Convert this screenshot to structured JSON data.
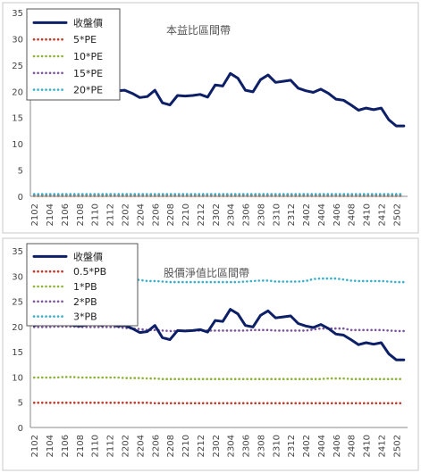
{
  "chart_data": [
    {
      "type": "line",
      "annotation": "本益比區間帶",
      "x": [
        "2102",
        "2103",
        "2104",
        "2105",
        "2106",
        "2107",
        "2108",
        "2109",
        "2110",
        "2111",
        "2112",
        "2201",
        "2202",
        "2203",
        "2204",
        "2205",
        "2206",
        "2207",
        "2208",
        "2209",
        "2210",
        "2211",
        "2212",
        "2301",
        "2302",
        "2303",
        "2304",
        "2305",
        "2306",
        "2307",
        "2308",
        "2309",
        "2310",
        "2311",
        "2312",
        "2401",
        "2402",
        "2403",
        "2404",
        "2405",
        "2406",
        "2407",
        "2408",
        "2409",
        "2410",
        "2411",
        "2412",
        "2501",
        "2502",
        "2503"
      ],
      "x_tick_labels": [
        "2102",
        "2104",
        "2106",
        "2108",
        "2110",
        "2112",
        "2202",
        "2204",
        "2206",
        "2208",
        "2210",
        "2212",
        "2302",
        "2304",
        "2306",
        "2308",
        "2310",
        "2312",
        "2402",
        "2404",
        "2406",
        "2408",
        "2410",
        "2412",
        "2502"
      ],
      "ylim": [
        0,
        35
      ],
      "y_ticks": [
        0,
        5,
        10,
        15,
        20,
        25,
        30,
        35
      ],
      "grid": false,
      "legend_placement": "top-left",
      "series": [
        {
          "name": "收盤價",
          "style": "solid",
          "color": "#0d1f66",
          "values": [
            20.2,
            20.5,
            20.8,
            21.0,
            20.6,
            20.3,
            20.1,
            20.3,
            20.5,
            20.2,
            20.6,
            20.1,
            20.2,
            19.6,
            18.8,
            19.0,
            20.2,
            17.8,
            17.4,
            19.2,
            19.1,
            19.2,
            19.4,
            18.9,
            21.2,
            21.0,
            23.4,
            22.5,
            20.2,
            19.9,
            22.2,
            23.1,
            21.7,
            21.9,
            22.1,
            20.6,
            20.1,
            19.8,
            20.4,
            19.6,
            18.5,
            18.3,
            17.4,
            16.4,
            16.8,
            16.5,
            16.8,
            14.6,
            13.4,
            13.4
          ]
        },
        {
          "name": "5*PE",
          "style": "dotted",
          "color": "#c0392b",
          "values": [
            0.1,
            0.1,
            0.1,
            0.1,
            0.1,
            0.1,
            0.1,
            0.1,
            0.1,
            0.1,
            0.1,
            0.1,
            0.1,
            0.1,
            0.1,
            0.1,
            0.1,
            0.1,
            0.1,
            0.1,
            0.1,
            0.1,
            0.1,
            0.1,
            0.1,
            0.1,
            0.1,
            0.1,
            0.1,
            0.1,
            0.1,
            0.1,
            0.1,
            0.1,
            0.1,
            0.1,
            0.1,
            0.1,
            0.1,
            0.1,
            0.1,
            0.1,
            0.1,
            0.1,
            0.1,
            0.1,
            0.1,
            0.1,
            0.1,
            0.1
          ]
        },
        {
          "name": "10*PE",
          "style": "dotted",
          "color": "#8db33a",
          "values": [
            0.2,
            0.2,
            0.2,
            0.2,
            0.2,
            0.2,
            0.2,
            0.2,
            0.2,
            0.2,
            0.2,
            0.2,
            0.2,
            0.2,
            0.2,
            0.2,
            0.2,
            0.2,
            0.2,
            0.2,
            0.2,
            0.2,
            0.2,
            0.2,
            0.2,
            0.2,
            0.2,
            0.2,
            0.2,
            0.2,
            0.2,
            0.2,
            0.2,
            0.2,
            0.2,
            0.2,
            0.2,
            0.2,
            0.2,
            0.2,
            0.2,
            0.2,
            0.2,
            0.2,
            0.2,
            0.2,
            0.2,
            0.2,
            0.2,
            0.2
          ]
        },
        {
          "name": "15*PE",
          "style": "dotted",
          "color": "#7b559e",
          "values": [
            0.3,
            0.3,
            0.3,
            0.3,
            0.3,
            0.3,
            0.3,
            0.3,
            0.3,
            0.3,
            0.3,
            0.3,
            0.3,
            0.3,
            0.3,
            0.3,
            0.3,
            0.3,
            0.3,
            0.3,
            0.3,
            0.3,
            0.3,
            0.3,
            0.3,
            0.3,
            0.3,
            0.3,
            0.3,
            0.3,
            0.3,
            0.3,
            0.3,
            0.3,
            0.3,
            0.3,
            0.3,
            0.3,
            0.3,
            0.3,
            0.3,
            0.3,
            0.3,
            0.3,
            0.3,
            0.3,
            0.3,
            0.3,
            0.3,
            0.3
          ]
        },
        {
          "name": "20*PE",
          "style": "dotted",
          "color": "#3cb0c9",
          "values": [
            0.4,
            0.4,
            0.4,
            0.4,
            0.4,
            0.4,
            0.4,
            0.4,
            0.4,
            0.4,
            0.4,
            0.4,
            0.4,
            0.4,
            0.4,
            0.4,
            0.4,
            0.4,
            0.4,
            0.4,
            0.4,
            0.4,
            0.4,
            0.4,
            0.4,
            0.4,
            0.4,
            0.4,
            0.4,
            0.4,
            0.4,
            0.4,
            0.4,
            0.4,
            0.4,
            0.4,
            0.4,
            0.4,
            0.4,
            0.4,
            0.4,
            0.4,
            0.4,
            0.4,
            0.4,
            0.4,
            0.4,
            0.4,
            0.4,
            0.4
          ]
        }
      ]
    },
    {
      "type": "line",
      "annotation": "股價淨值比區間帶",
      "x": [
        "2102",
        "2103",
        "2104",
        "2105",
        "2106",
        "2107",
        "2108",
        "2109",
        "2110",
        "2111",
        "2112",
        "2201",
        "2202",
        "2203",
        "2204",
        "2205",
        "2206",
        "2207",
        "2208",
        "2209",
        "2210",
        "2211",
        "2212",
        "2301",
        "2302",
        "2303",
        "2304",
        "2305",
        "2306",
        "2307",
        "2308",
        "2309",
        "2310",
        "2311",
        "2312",
        "2401",
        "2402",
        "2403",
        "2404",
        "2405",
        "2406",
        "2407",
        "2408",
        "2409",
        "2410",
        "2411",
        "2412",
        "2501",
        "2502",
        "2503"
      ],
      "x_tick_labels": [
        "2102",
        "2104",
        "2106",
        "2108",
        "2110",
        "2112",
        "2202",
        "2204",
        "2206",
        "2208",
        "2210",
        "2212",
        "2302",
        "2304",
        "2306",
        "2308",
        "2310",
        "2312",
        "2402",
        "2404",
        "2406",
        "2408",
        "2410",
        "2412",
        "2502"
      ],
      "ylim": [
        0,
        35
      ],
      "y_ticks": [
        0,
        5,
        10,
        15,
        20,
        25,
        30,
        35
      ],
      "grid": false,
      "legend_placement": "top-left",
      "series": [
        {
          "name": "收盤價",
          "style": "solid",
          "color": "#0d1f66",
          "values": [
            20.2,
            20.5,
            20.8,
            21.0,
            20.6,
            20.3,
            20.1,
            20.3,
            20.5,
            20.2,
            20.6,
            20.1,
            20.2,
            19.6,
            18.8,
            19.0,
            20.2,
            17.8,
            17.4,
            19.2,
            19.1,
            19.2,
            19.4,
            18.9,
            21.2,
            21.0,
            23.4,
            22.5,
            20.2,
            19.9,
            22.2,
            23.1,
            21.7,
            21.9,
            22.1,
            20.6,
            20.1,
            19.8,
            20.4,
            19.6,
            18.5,
            18.3,
            17.4,
            16.4,
            16.8,
            16.5,
            16.8,
            14.6,
            13.4,
            13.4
          ]
        },
        {
          "name": "0.5*PB",
          "style": "dotted",
          "color": "#c0392b",
          "values": [
            4.9,
            4.9,
            4.9,
            4.9,
            4.9,
            4.9,
            4.9,
            4.9,
            4.9,
            4.9,
            4.9,
            4.9,
            4.9,
            4.9,
            4.9,
            4.9,
            4.8,
            4.8,
            4.8,
            4.8,
            4.8,
            4.8,
            4.8,
            4.8,
            4.8,
            4.8,
            4.8,
            4.8,
            4.8,
            4.8,
            4.8,
            4.8,
            4.8,
            4.8,
            4.8,
            4.8,
            4.8,
            4.8,
            4.8,
            4.8,
            4.8,
            4.8,
            4.8,
            4.8,
            4.8,
            4.8,
            4.8,
            4.8,
            4.8,
            4.8
          ]
        },
        {
          "name": "1*PB",
          "style": "dotted",
          "color": "#8db33a",
          "values": [
            9.9,
            9.9,
            9.9,
            9.9,
            10.0,
            10.0,
            9.9,
            9.9,
            9.9,
            9.9,
            9.9,
            9.9,
            9.8,
            9.8,
            9.8,
            9.7,
            9.7,
            9.6,
            9.6,
            9.6,
            9.6,
            9.6,
            9.6,
            9.6,
            9.6,
            9.6,
            9.6,
            9.6,
            9.6,
            9.6,
            9.6,
            9.6,
            9.6,
            9.6,
            9.6,
            9.6,
            9.6,
            9.6,
            9.6,
            9.7,
            9.7,
            9.7,
            9.6,
            9.6,
            9.6,
            9.6,
            9.6,
            9.6,
            9.6,
            9.6
          ]
        },
        {
          "name": "2*PB",
          "style": "dotted",
          "color": "#7b559e",
          "values": [
            19.9,
            19.9,
            19.9,
            20.0,
            20.0,
            20.0,
            19.9,
            19.9,
            19.9,
            19.9,
            19.9,
            19.9,
            19.7,
            19.6,
            19.5,
            19.3,
            19.3,
            19.2,
            19.1,
            19.1,
            19.2,
            19.2,
            19.2,
            19.2,
            19.2,
            19.2,
            19.2,
            19.2,
            19.2,
            19.3,
            19.3,
            19.3,
            19.2,
            19.2,
            19.2,
            19.2,
            19.2,
            19.4,
            19.6,
            19.6,
            19.6,
            19.6,
            19.3,
            19.3,
            19.3,
            19.3,
            19.3,
            19.2,
            19.1,
            19.1
          ]
        },
        {
          "name": "3*PB",
          "style": "dotted",
          "color": "#3cb0c9",
          "values": [
            29.6,
            29.6,
            29.6,
            29.8,
            29.9,
            29.9,
            29.8,
            29.8,
            29.8,
            29.8,
            29.8,
            29.7,
            29.5,
            29.4,
            29.2,
            29.0,
            29.0,
            28.9,
            28.8,
            28.8,
            28.8,
            28.8,
            28.8,
            28.8,
            28.8,
            28.8,
            28.8,
            28.8,
            28.9,
            29.0,
            29.1,
            29.1,
            28.9,
            28.9,
            28.9,
            28.9,
            29.0,
            29.4,
            29.5,
            29.5,
            29.5,
            29.3,
            29.1,
            29.0,
            29.0,
            29.0,
            29.0,
            28.9,
            28.8,
            28.8
          ]
        }
      ]
    }
  ]
}
